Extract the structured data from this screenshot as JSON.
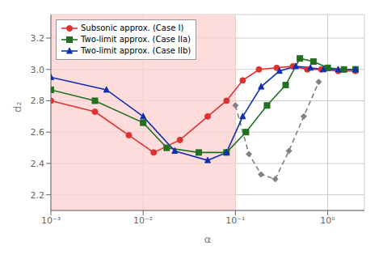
{
  "chart_data": {
    "type": "line",
    "xlabel": "α",
    "ylabel": "d₂",
    "log": "x",
    "grid": true,
    "legend": "upper left",
    "xlim": [
      0.001,
      2.5
    ],
    "ylim": [
      2.1,
      3.35
    ],
    "xticks": [
      {
        "value": 0.001,
        "label": "10⁻³"
      },
      {
        "value": 0.01,
        "label": "10⁻²"
      },
      {
        "value": 0.1,
        "label": "10⁻¹"
      },
      {
        "value": 1.0,
        "label": "10⁰"
      }
    ],
    "yticks": [
      2.2,
      2.4,
      2.6,
      2.8,
      {
        "value": 3.0,
        "label": "3.0"
      },
      3.2
    ],
    "spans": [
      {
        "x": [
          0.001,
          0.1
        ],
        "color": "#ffd0d0"
      }
    ],
    "series": [
      {
        "color": "#808080",
        "marker": "diamond",
        "line_style": "dashed",
        "x": [
          0.1,
          0.14,
          0.19,
          0.27,
          0.38,
          0.55,
          0.8
        ],
        "values": [
          2.77,
          2.46,
          2.33,
          2.3,
          2.48,
          2.7,
          2.92
        ]
      },
      {
        "name": "Subsonic approx. (Case I)",
        "color": "#e03030",
        "marker": "circle",
        "line_style": "solid",
        "x": [
          0.001,
          0.003,
          0.007,
          0.013,
          0.025,
          0.05,
          0.08,
          0.12,
          0.18,
          0.28,
          0.42,
          0.6,
          0.85,
          1.3,
          2.0
        ],
        "values": [
          2.8,
          2.73,
          2.58,
          2.47,
          2.55,
          2.7,
          2.8,
          2.93,
          3.0,
          3.01,
          3.02,
          3.0,
          3.0,
          2.99,
          2.99
        ]
      },
      {
        "name": "Two-limit approx. (Case IIa)",
        "color": "#207020",
        "marker": "square",
        "line_style": "solid",
        "x": [
          0.001,
          0.003,
          0.01,
          0.018,
          0.04,
          0.08,
          0.13,
          0.22,
          0.35,
          0.5,
          0.7,
          1.0,
          1.5,
          2.0
        ],
        "values": [
          2.87,
          2.8,
          2.66,
          2.5,
          2.47,
          2.47,
          2.6,
          2.77,
          2.9,
          3.07,
          3.05,
          3.01,
          3.0,
          3.0
        ]
      },
      {
        "name": "Two-limit approx. (Case IIb)",
        "color": "#1030b0",
        "marker": "triangle",
        "line_style": "solid",
        "x": [
          0.001,
          0.004,
          0.01,
          0.022,
          0.05,
          0.08,
          0.12,
          0.19,
          0.3,
          0.45,
          0.65,
          0.9,
          1.3,
          2.0
        ],
        "values": [
          2.95,
          2.87,
          2.7,
          2.48,
          2.42,
          2.47,
          2.7,
          2.89,
          2.99,
          3.02,
          3.01,
          3.0,
          3.0,
          3.0
        ]
      }
    ]
  }
}
